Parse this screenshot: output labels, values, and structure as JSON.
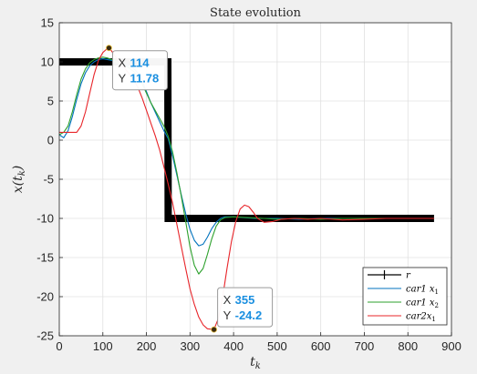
{
  "chart_data": {
    "type": "line",
    "title": "State evolution",
    "xlabel": "t_k",
    "ylabel": "x(t_k)",
    "xlim": [
      0,
      900
    ],
    "ylim": [
      -25,
      15
    ],
    "x_ticks": [
      "0",
      "100",
      "200",
      "300",
      "400",
      "500",
      "600",
      "700",
      "800",
      "900"
    ],
    "y_ticks": [
      "15",
      "10",
      "5",
      "0",
      "-5",
      "-10",
      "-15",
      "-20",
      "-25"
    ],
    "grid": true,
    "legend_position": "bottom-right",
    "series": [
      {
        "name": "r",
        "name_base": "r",
        "name_sub": "",
        "color": "#000000",
        "style": "thick-reference",
        "points": [
          [
            0,
            10
          ],
          [
            249,
            10
          ],
          [
            250,
            -10
          ],
          [
            860,
            -10
          ]
        ]
      },
      {
        "name": "car1 x_1",
        "name_base": "car1  x",
        "name_sub": "1",
        "color": "#0072bd",
        "points": [
          [
            0,
            0.7
          ],
          [
            10,
            0.3
          ],
          [
            20,
            1.2
          ],
          [
            30,
            3.0
          ],
          [
            40,
            5.2
          ],
          [
            50,
            7.2
          ],
          [
            60,
            8.6
          ],
          [
            70,
            9.5
          ],
          [
            80,
            10.0
          ],
          [
            90,
            10.3
          ],
          [
            100,
            10.4
          ],
          [
            110,
            10.3
          ],
          [
            120,
            10.2
          ],
          [
            130,
            10.0
          ],
          [
            140,
            9.8
          ],
          [
            150,
            9.6
          ],
          [
            160,
            9.4
          ],
          [
            170,
            9.2
          ],
          [
            180,
            8.6
          ],
          [
            190,
            7.6
          ],
          [
            200,
            6.2
          ],
          [
            210,
            4.8
          ],
          [
            220,
            3.6
          ],
          [
            230,
            2.4
          ],
          [
            240,
            1.2
          ],
          [
            250,
            0.2
          ],
          [
            260,
            -2.0
          ],
          [
            270,
            -4.5
          ],
          [
            280,
            -7.0
          ],
          [
            290,
            -9.4
          ],
          [
            300,
            -11.4
          ],
          [
            310,
            -12.8
          ],
          [
            320,
            -13.5
          ],
          [
            330,
            -13.3
          ],
          [
            340,
            -12.4
          ],
          [
            350,
            -11.3
          ],
          [
            360,
            -10.5
          ],
          [
            370,
            -10.0
          ],
          [
            380,
            -9.8
          ],
          [
            400,
            -9.8
          ],
          [
            420,
            -9.9
          ],
          [
            450,
            -10.0
          ],
          [
            500,
            -10.0
          ],
          [
            550,
            -10.1
          ],
          [
            600,
            -10.0
          ],
          [
            650,
            -10.0
          ],
          [
            700,
            -10.0
          ],
          [
            750,
            -10.0
          ],
          [
            800,
            -10.0
          ],
          [
            860,
            -10.0
          ]
        ]
      },
      {
        "name": "car1 x_2",
        "name_base": "car1  x",
        "name_sub": "2",
        "color": "#2ca02c",
        "points": [
          [
            0,
            0.7
          ],
          [
            10,
            1.0
          ],
          [
            20,
            1.8
          ],
          [
            30,
            3.6
          ],
          [
            40,
            5.8
          ],
          [
            50,
            7.8
          ],
          [
            60,
            9.1
          ],
          [
            70,
            9.9
          ],
          [
            80,
            10.3
          ],
          [
            90,
            10.5
          ],
          [
            100,
            10.6
          ],
          [
            110,
            10.5
          ],
          [
            120,
            10.3
          ],
          [
            130,
            10.0
          ],
          [
            140,
            9.8
          ],
          [
            150,
            9.5
          ],
          [
            160,
            9.2
          ],
          [
            170,
            8.8
          ],
          [
            180,
            8.2
          ],
          [
            190,
            7.2
          ],
          [
            200,
            6.0
          ],
          [
            210,
            4.8
          ],
          [
            220,
            3.8
          ],
          [
            230,
            2.8
          ],
          [
            240,
            1.8
          ],
          [
            250,
            0.5
          ],
          [
            260,
            -1.5
          ],
          [
            270,
            -4.2
          ],
          [
            280,
            -7.2
          ],
          [
            290,
            -10.4
          ],
          [
            300,
            -13.6
          ],
          [
            310,
            -16.0
          ],
          [
            320,
            -17.1
          ],
          [
            330,
            -16.4
          ],
          [
            340,
            -14.6
          ],
          [
            350,
            -12.6
          ],
          [
            360,
            -11.0
          ],
          [
            370,
            -10.2
          ],
          [
            380,
            -9.9
          ],
          [
            400,
            -9.8
          ],
          [
            430,
            -9.9
          ],
          [
            470,
            -10.0
          ],
          [
            500,
            -10.1
          ],
          [
            550,
            -10.0
          ],
          [
            600,
            -10.1
          ],
          [
            650,
            -10.0
          ],
          [
            700,
            -10.0
          ],
          [
            750,
            -10.0
          ],
          [
            800,
            -10.0
          ],
          [
            860,
            -10.0
          ]
        ]
      },
      {
        "name": "car2x_1",
        "name_base": "car2x",
        "name_sub": "1",
        "color": "#e8252a",
        "points": [
          [
            0,
            1.0
          ],
          [
            20,
            1.0
          ],
          [
            40,
            1.0
          ],
          [
            50,
            1.8
          ],
          [
            60,
            3.6
          ],
          [
            70,
            6.0
          ],
          [
            80,
            8.4
          ],
          [
            90,
            10.2
          ],
          [
            100,
            11.2
          ],
          [
            110,
            11.7
          ],
          [
            114,
            11.78
          ],
          [
            120,
            11.4
          ],
          [
            130,
            10.6
          ],
          [
            140,
            9.8
          ],
          [
            150,
            9.2
          ],
          [
            160,
            8.5
          ],
          [
            170,
            7.8
          ],
          [
            180,
            6.8
          ],
          [
            190,
            5.4
          ],
          [
            200,
            3.8
          ],
          [
            210,
            2.2
          ],
          [
            220,
            0.6
          ],
          [
            230,
            -1.2
          ],
          [
            240,
            -3.4
          ],
          [
            250,
            -5.6
          ],
          [
            260,
            -8.0
          ],
          [
            270,
            -10.8
          ],
          [
            280,
            -13.6
          ],
          [
            290,
            -16.4
          ],
          [
            300,
            -19.0
          ],
          [
            310,
            -21.0
          ],
          [
            320,
            -22.6
          ],
          [
            330,
            -23.6
          ],
          [
            340,
            -24.1
          ],
          [
            355,
            -24.2
          ],
          [
            365,
            -22.8
          ],
          [
            375,
            -20.0
          ],
          [
            385,
            -16.4
          ],
          [
            395,
            -13.0
          ],
          [
            405,
            -10.4
          ],
          [
            415,
            -8.8
          ],
          [
            425,
            -8.3
          ],
          [
            435,
            -8.5
          ],
          [
            445,
            -9.2
          ],
          [
            455,
            -10.0
          ],
          [
            470,
            -10.5
          ],
          [
            490,
            -10.4
          ],
          [
            510,
            -10.1
          ],
          [
            540,
            -10.0
          ],
          [
            570,
            -10.1
          ],
          [
            600,
            -10.0
          ],
          [
            650,
            -10.2
          ],
          [
            700,
            -10.1
          ],
          [
            750,
            -10.0
          ],
          [
            800,
            -10.0
          ],
          [
            860,
            -10.0
          ]
        ]
      }
    ],
    "datatips": [
      {
        "x_label": "X",
        "x_value": "114",
        "y_label": "Y",
        "y_value": "11.78",
        "x": 114,
        "y": 11.78
      },
      {
        "x_label": "X",
        "x_value": "355",
        "y_label": "Y",
        "y_value": "-24.2",
        "x": 355,
        "y": -24.2
      }
    ]
  }
}
